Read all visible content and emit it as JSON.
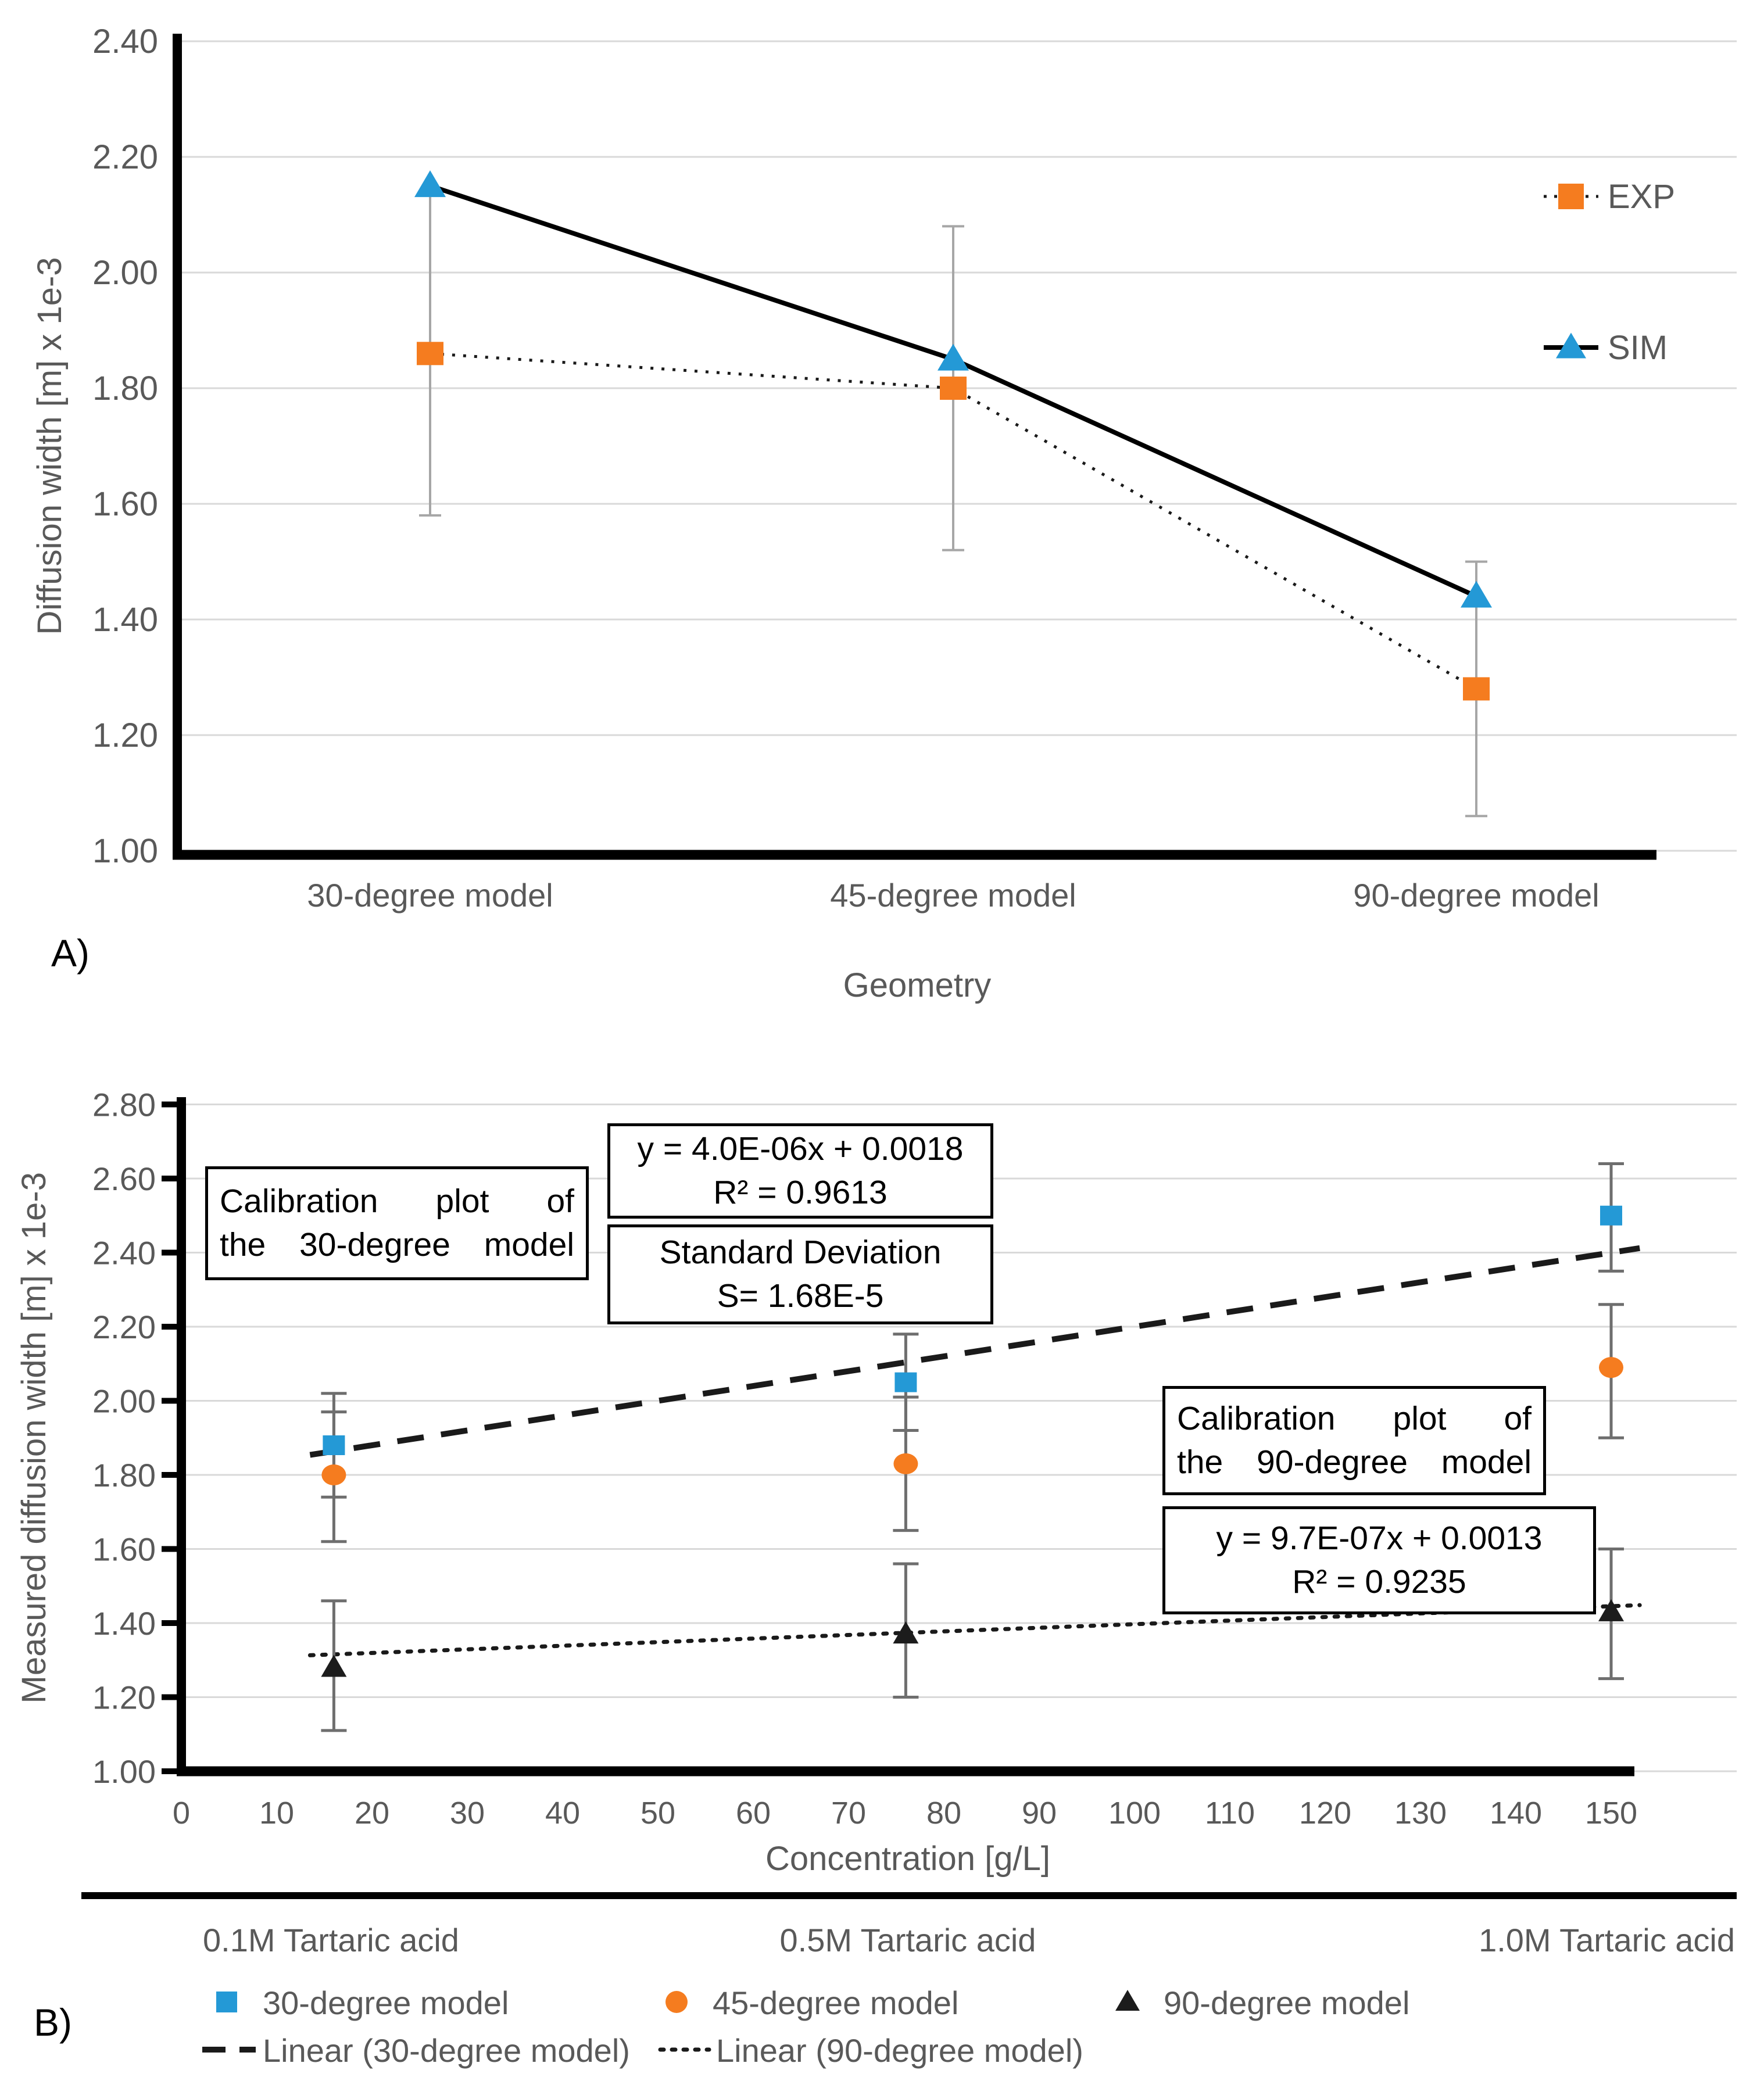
{
  "figure": {
    "panel_a_label": "A)",
    "panel_b_label": "B)"
  },
  "colors": {
    "exp_orange": "#F57C1F",
    "sim_blue": "#2499D6",
    "black_series": "#1C1C1C",
    "axis_text_gray": "#595959",
    "gridline_gray": "#D9D9D9",
    "errorbar_gray_a": "#A6A6A6",
    "errorbar_gray_b": "#6E6E6E"
  },
  "chart_data": [
    {
      "id": "chart-a",
      "type": "line",
      "title": "",
      "xlabel": "Geometry",
      "ylabel": "Diffusion width [m] x 1e-3",
      "categories": [
        "30-degree model",
        "45-degree model",
        "90-degree model"
      ],
      "ylim": [
        1.0,
        2.4
      ],
      "ytick_step": 0.2,
      "ytick_labels": [
        "2.40",
        "2.20",
        "2.00",
        "1.80",
        "1.60",
        "1.40",
        "1.20",
        "1.00"
      ],
      "grid": true,
      "legend_position": "right",
      "series": [
        {
          "name": "EXP",
          "marker": "square",
          "color": "#F57C1F",
          "line_style": "dotted",
          "line_color": "#1A1A1A",
          "values": [
            1.86,
            1.8,
            1.28
          ],
          "error_low": [
            1.58,
            1.52,
            1.06
          ],
          "error_high": [
            2.14,
            2.08,
            1.5
          ]
        },
        {
          "name": "SIM",
          "marker": "triangle",
          "color": "#2499D6",
          "line_style": "solid",
          "line_color": "#000000",
          "values": [
            2.15,
            1.85,
            1.44
          ],
          "error_low": null,
          "error_high": null
        }
      ]
    },
    {
      "id": "chart-b",
      "type": "scatter",
      "title": "",
      "xlabel": "Concentration [g/L]",
      "ylabel": "Measured diffusion width [m] x 1e-3",
      "xlim": [
        0,
        155
      ],
      "xtick_labels": [
        "0",
        "10",
        "20",
        "30",
        "40",
        "50",
        "60",
        "70",
        "80",
        "90",
        "100",
        "110",
        "120",
        "130",
        "140",
        "150"
      ],
      "ylim": [
        1.0,
        2.8
      ],
      "ytick_step": 0.2,
      "ytick_labels": [
        "2.80",
        "2.60",
        "2.40",
        "2.20",
        "2.00",
        "1.80",
        "1.60",
        "1.40",
        "1.20",
        "1.00"
      ],
      "grid": true,
      "legend_position": "bottom",
      "series": [
        {
          "name": "30-degree model",
          "marker": "square",
          "color": "#2499D6",
          "x": [
            16,
            76,
            150
          ],
          "y": [
            1.88,
            2.05,
            2.5
          ],
          "error_low": [
            1.74,
            1.92,
            2.35
          ],
          "error_high": [
            2.02,
            2.18,
            2.64
          ]
        },
        {
          "name": "45-degree model",
          "marker": "circle",
          "color": "#F57C1F",
          "x": [
            16,
            76,
            150
          ],
          "y": [
            1.8,
            1.83,
            2.09
          ],
          "error_low": [
            1.62,
            1.65,
            1.9
          ],
          "error_high": [
            1.97,
            2.01,
            2.26
          ]
        },
        {
          "name": "90-degree model",
          "marker": "triangle",
          "color": "#1C1C1C",
          "x": [
            16,
            76,
            150
          ],
          "y": [
            1.28,
            1.37,
            1.43
          ],
          "error_low": [
            1.11,
            1.2,
            1.25
          ],
          "error_high": [
            1.46,
            1.56,
            1.6
          ]
        }
      ],
      "trendlines": [
        {
          "name": "Linear (30-degree model)",
          "style": "dashed",
          "slope": 0.004,
          "intercept": 1.8,
          "x_start": 13.5,
          "x_end": 153
        },
        {
          "name": "Linear (90-degree model)",
          "style": "dotted",
          "slope": 0.00097,
          "intercept": 1.3,
          "x_start": 13.5,
          "x_end": 153
        }
      ],
      "secondary_axis": {
        "labels": [
          "0.1M Tartaric acid",
          "0.5M Tartaric acid",
          "1.0M Tartaric acid"
        ]
      },
      "annotations": {
        "cal30_line1": "Calibration plot of",
        "cal30_line2": "the 30-degree model",
        "eq30_line1": "y = 4.0E-06x + 0.0018",
        "eq30_line2": "R² = 0.9613",
        "sd_line1": "Standard Deviation",
        "sd_line2": "S= 1.68E-5",
        "cal90_line1": "Calibration plot of",
        "cal90_line2": "the 90-degree model",
        "eq90_line1": "y = 9.7E-07x + 0.0013",
        "eq90_line2": "R² = 0.9235"
      }
    }
  ]
}
